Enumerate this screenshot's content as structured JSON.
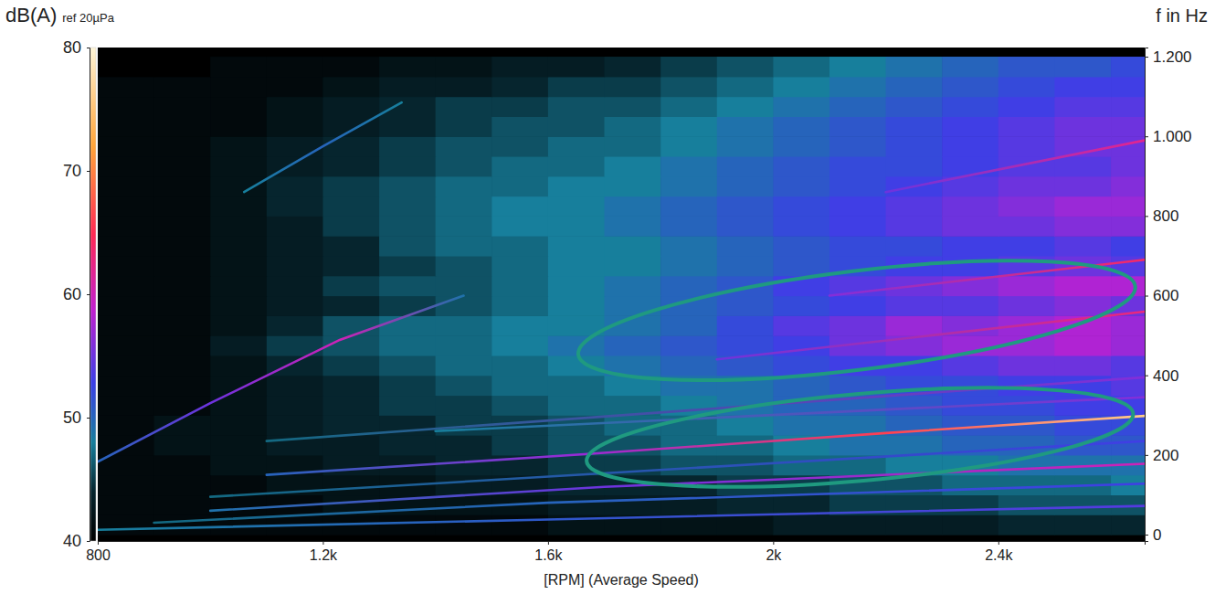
{
  "chart_data": {
    "type": "heatmap",
    "x_label": "[RPM] (Average Speed)",
    "y_label": "f in Hz",
    "colorbar_label": "dB(A)",
    "colorbar_note": "ref 20µPa",
    "xlim": [
      800,
      2660
    ],
    "xticks": [
      800,
      {
        "value": 1200,
        "label": "1.2k"
      },
      {
        "value": 1600,
        "label": "1.6k"
      },
      {
        "value": 2000,
        "label": "2k"
      },
      {
        "value": 2400,
        "label": "2.4k"
      }
    ],
    "ylim": [
      -16,
      1223
    ],
    "yticks": [
      0,
      200,
      400,
      600,
      800,
      {
        "value": 1000,
        "label": "1.000"
      },
      {
        "value": 1200,
        "label": "1.200"
      }
    ],
    "grid": false,
    "colorbar_range": [
      40,
      80
    ],
    "colorbar_ticks": [
      40,
      50,
      60,
      70,
      80
    ],
    "cells": {
      "x": [
        850,
        950,
        1050,
        1150,
        1250,
        1350,
        1450,
        1550,
        1650,
        1750,
        1850,
        1950,
        2050,
        2150,
        2250,
        2350,
        2450,
        2550,
        2650
      ],
      "y": [
        25,
        75,
        125,
        175,
        225,
        275,
        325,
        375,
        425,
        475,
        525,
        575,
        625,
        675,
        725,
        775,
        825,
        875,
        925,
        975,
        1025,
        1075,
        1125,
        1175
      ],
      "values": [
        [
          41,
          41,
          41,
          41,
          41,
          41,
          41,
          41,
          42,
          42,
          42,
          42,
          43,
          43,
          43,
          43,
          44,
          44,
          44
        ],
        [
          41,
          41,
          41,
          41,
          42,
          42,
          42,
          42,
          43,
          43,
          43,
          44,
          44,
          45,
          45,
          45,
          46,
          46,
          46
        ],
        [
          41,
          41,
          41,
          42,
          42,
          42,
          43,
          43,
          44,
          44,
          44,
          45,
          45,
          46,
          46,
          47,
          47,
          47,
          48
        ],
        [
          41,
          41,
          42,
          42,
          43,
          43,
          44,
          44,
          45,
          45,
          46,
          46,
          47,
          47,
          48,
          48,
          49,
          49,
          49
        ],
        [
          41,
          42,
          42,
          43,
          43,
          44,
          44,
          45,
          46,
          46,
          47,
          47,
          48,
          49,
          49,
          50,
          50,
          51,
          51
        ],
        [
          41,
          42,
          42,
          43,
          44,
          44,
          45,
          45,
          46,
          47,
          47,
          48,
          49,
          49,
          50,
          51,
          51,
          52,
          52
        ],
        [
          41,
          41,
          42,
          43,
          44,
          45,
          45,
          46,
          47,
          47,
          48,
          49,
          50,
          50,
          51,
          52,
          52,
          53,
          53
        ],
        [
          41,
          41,
          42,
          43,
          44,
          45,
          46,
          47,
          47,
          48,
          49,
          49,
          50,
          51,
          52,
          52,
          53,
          53,
          54
        ],
        [
          41,
          41,
          42,
          44,
          45,
          46,
          47,
          47,
          48,
          49,
          50,
          51,
          52,
          53,
          53,
          54,
          55,
          55,
          54
        ],
        [
          41,
          41,
          43,
          45,
          46,
          47,
          47,
          48,
          49,
          50,
          51,
          52,
          53,
          55,
          56,
          57,
          57,
          58,
          57
        ],
        [
          41,
          41,
          42,
          44,
          46,
          47,
          47,
          48,
          48,
          49,
          50,
          52,
          54,
          55,
          57,
          56,
          57,
          58,
          57
        ],
        [
          41,
          41,
          42,
          43,
          44,
          45,
          46,
          47,
          48,
          49,
          50,
          51,
          52,
          53,
          54,
          54,
          55,
          56,
          55
        ],
        [
          41,
          41,
          42,
          43,
          45,
          46,
          46,
          47,
          48,
          49,
          50,
          51,
          53,
          54,
          55,
          56,
          57,
          58,
          58
        ],
        [
          41,
          41,
          42,
          43,
          44,
          45,
          46,
          47,
          48,
          48,
          49,
          50,
          51,
          52,
          53,
          53,
          54,
          55,
          54
        ],
        [
          41,
          41,
          42,
          43,
          44,
          46,
          47,
          47,
          48,
          48,
          49,
          50,
          51,
          52,
          52,
          53,
          53,
          54,
          53
        ],
        [
          41,
          41,
          42,
          43,
          45,
          46,
          47,
          48,
          48,
          49,
          50,
          51,
          52,
          53,
          54,
          55,
          55,
          56,
          56
        ],
        [
          41,
          41,
          42,
          44,
          45,
          46,
          47,
          48,
          48,
          49,
          50,
          51,
          52,
          53,
          54,
          55,
          56,
          57,
          57
        ],
        [
          41,
          41,
          42,
          44,
          45,
          46,
          47,
          47,
          48,
          48,
          49,
          50,
          51,
          52,
          53,
          54,
          55,
          55,
          56
        ],
        [
          41,
          41,
          42,
          43,
          44,
          45,
          46,
          47,
          47,
          48,
          49,
          50,
          51,
          52,
          52,
          53,
          54,
          54,
          55
        ],
        [
          41,
          41,
          42,
          43,
          44,
          45,
          46,
          46,
          47,
          47,
          48,
          49,
          50,
          51,
          52,
          53,
          54,
          55,
          55
        ],
        [
          41,
          41,
          41,
          42,
          43,
          44,
          45,
          46,
          46,
          47,
          48,
          49,
          50,
          51,
          52,
          53,
          54,
          55,
          55
        ],
        [
          41,
          41,
          41,
          42,
          43,
          44,
          45,
          45,
          46,
          46,
          47,
          48,
          49,
          50,
          51,
          52,
          53,
          54,
          54
        ],
        [
          41,
          41,
          41,
          41,
          42,
          43,
          43,
          44,
          45,
          45,
          46,
          47,
          48,
          49,
          50,
          51,
          52,
          53,
          53
        ],
        [
          40,
          40,
          41,
          41,
          41,
          42,
          42,
          43,
          43,
          44,
          45,
          46,
          47,
          48,
          49,
          50,
          51,
          51,
          52
        ]
      ]
    },
    "orders": [
      {
        "x": [
          800,
          1600,
          2660
        ],
        "y": [
          12,
          38,
          72
        ],
        "values": [
          48,
          51,
          54
        ]
      },
      {
        "x": [
          900,
          1600,
          2660
        ],
        "y": [
          30,
          80,
          128
        ],
        "values": [
          47,
          50,
          53
        ]
      },
      {
        "x": [
          1000,
          1700,
          2660
        ],
        "y": [
          60,
          120,
          178
        ],
        "values": [
          49,
          55,
          60
        ]
      },
      {
        "x": [
          1100,
          1665,
          2200,
          2660
        ],
        "y": [
          150,
          202,
          255,
          298
        ],
        "values": [
          50,
          57,
          66,
          76
        ]
      },
      {
        "x": [
          800,
          1000,
          1230,
          1450
        ],
        "y": [
          183,
          330,
          489,
          600
        ],
        "values": [
          50,
          55,
          60,
          49
        ]
      },
      {
        "x": [
          1060,
          1200,
          1340
        ],
        "y": [
          860,
          975,
          1085
        ],
        "values": [
          48,
          50,
          48
        ]
      },
      {
        "x": [
          1000,
          2660
        ],
        "y": [
          95,
          235
        ],
        "values": [
          47,
          53
        ]
      },
      {
        "x": [
          1100,
          2660
        ],
        "y": [
          235,
          395
        ],
        "values": [
          47,
          56
        ]
      },
      {
        "x": [
          1900,
          2660
        ],
        "y": [
          440,
          560
        ],
        "values": [
          55,
          63
        ]
      },
      {
        "x": [
          2100,
          2660
        ],
        "y": [
          600,
          690
        ],
        "values": [
          56,
          64
        ]
      },
      {
        "x": [
          2200,
          2660
        ],
        "y": [
          860,
          990
        ],
        "values": [
          55,
          62
        ]
      },
      {
        "x": [
          1400,
          2660
        ],
        "y": [
          260,
          345
        ],
        "values": [
          48,
          56
        ]
      }
    ]
  }
}
